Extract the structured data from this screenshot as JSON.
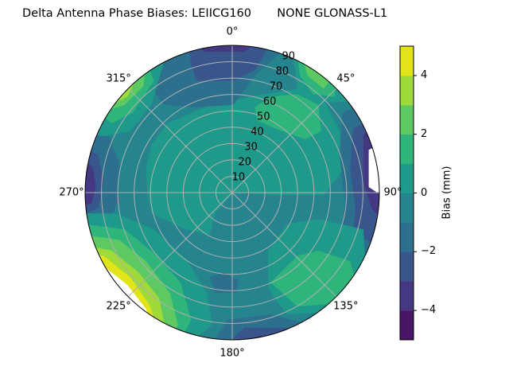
{
  "chart_data": {
    "type": "polar-contour",
    "title": "Delta Antenna Phase Biases: LEIICG160       NONE GLONASS-L1",
    "angular_ticks": [
      "0°",
      "45°",
      "90°",
      "135°",
      "180°",
      "225°",
      "270°",
      "315°"
    ],
    "radial_ticks": [
      "10",
      "20",
      "30",
      "40",
      "50",
      "60",
      "70",
      "80",
      "90"
    ],
    "radial_range": [
      0,
      90
    ],
    "grid": true,
    "colorbar": {
      "label": "Bias (mm)",
      "levels": [
        -5,
        -4,
        -3,
        -2,
        -1,
        0,
        1,
        2,
        3,
        4,
        5
      ],
      "tick_labels": [
        "4",
        "2",
        "0",
        "−2",
        "−4"
      ],
      "tick_values": [
        4,
        2,
        0,
        -2,
        -4
      ],
      "colors": [
        "#471466",
        "#453781",
        "#39568c",
        "#2d708e",
        "#25848e",
        "#1f9a8a",
        "#2fb47c",
        "#5ec962",
        "#9fd93a",
        "#e2e418"
      ],
      "placement": "right"
    }
  }
}
